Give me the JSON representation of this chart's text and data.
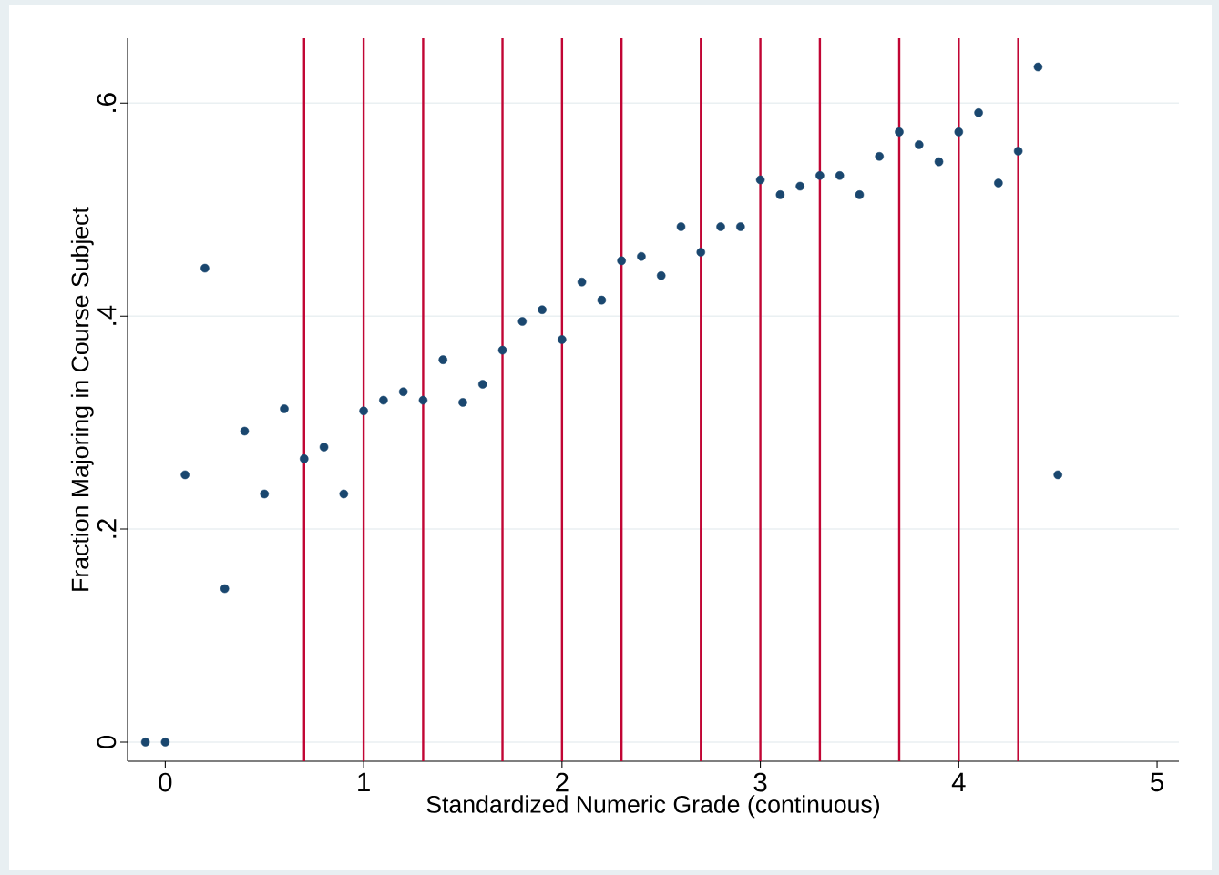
{
  "chart_data": {
    "type": "scatter",
    "xlabel": "Standardized Numeric Grade (continuous)",
    "ylabel": "Fraction Majoring in Course Subject",
    "x": [
      -0.1,
      0,
      0.1,
      0.2,
      0.3,
      0.4,
      0.5,
      0.6,
      0.7,
      0.8,
      0.9,
      1.0,
      1.1,
      1.2,
      1.3,
      1.4,
      1.5,
      1.6,
      1.7,
      1.8,
      1.9,
      2.0,
      2.1,
      2.2,
      2.3,
      2.4,
      2.5,
      2.6,
      2.7,
      2.8,
      2.9,
      3.0,
      3.1,
      3.2,
      3.3,
      3.4,
      3.5,
      3.6,
      3.7,
      3.8,
      3.9,
      4.0,
      4.1,
      4.2,
      4.3,
      4.4,
      4.5
    ],
    "values": [
      0,
      0,
      0.251,
      0.445,
      0.144,
      0.292,
      0.233,
      0.313,
      0.266,
      0.277,
      0.233,
      0.311,
      0.321,
      0.329,
      0.321,
      0.359,
      0.319,
      0.336,
      0.368,
      0.395,
      0.406,
      0.378,
      0.432,
      0.415,
      0.452,
      0.456,
      0.438,
      0.484,
      0.46,
      0.484,
      0.484,
      0.528,
      0.514,
      0.522,
      0.532,
      0.532,
      0.514,
      0.55,
      0.573,
      0.561,
      0.545,
      0.573,
      0.591,
      0.525,
      0.555,
      0.634,
      0.251
    ],
    "color": "#1a476f",
    "marker": "circle",
    "xlim": [
      -0.19,
      5.11
    ],
    "ylim": [
      -0.018,
      0.661
    ],
    "xticks": [
      0,
      1,
      2,
      3,
      4,
      5
    ],
    "yticks": [
      {
        "value": 0,
        "label": "0"
      },
      {
        "value": 0.2,
        "label": ".2"
      },
      {
        "value": 0.4,
        "label": ".4"
      },
      {
        "value": 0.6,
        "label": ".6"
      }
    ],
    "grid": "y",
    "ref_lines": [
      {
        "axis": "x",
        "value": 0.7,
        "color": "#c10534"
      },
      {
        "axis": "x",
        "value": 1.0,
        "color": "#c10534"
      },
      {
        "axis": "x",
        "value": 1.3,
        "color": "#c10534"
      },
      {
        "axis": "x",
        "value": 1.7,
        "color": "#c10534"
      },
      {
        "axis": "x",
        "value": 2.0,
        "color": "#c10534"
      },
      {
        "axis": "x",
        "value": 2.3,
        "color": "#c10534"
      },
      {
        "axis": "x",
        "value": 2.7,
        "color": "#c10534"
      },
      {
        "axis": "x",
        "value": 3.0,
        "color": "#c10534"
      },
      {
        "axis": "x",
        "value": 3.3,
        "color": "#c10534"
      },
      {
        "axis": "x",
        "value": 3.7,
        "color": "#c10534"
      },
      {
        "axis": "x",
        "value": 4.0,
        "color": "#c10534"
      },
      {
        "axis": "x",
        "value": 4.3,
        "color": "#c10534"
      }
    ]
  }
}
